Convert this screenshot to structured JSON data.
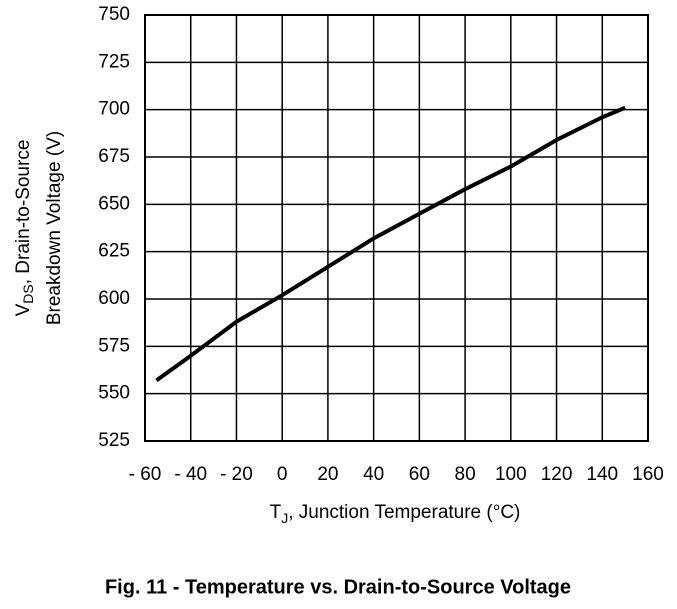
{
  "chart_data": {
    "type": "line",
    "caption": "Fig. 11 - Temperature vs. Drain-to-Source Voltage",
    "ylabel": {
      "main": "V",
      "sub": "DS",
      "rest": ", Drain-to-Source",
      "line2": "Breakdown Voltage (V)"
    },
    "xlabel": {
      "main": "T",
      "sub": "J",
      "rest": ", Junction Temperature (°C)"
    },
    "x": [
      -55,
      -40,
      -20,
      0,
      20,
      40,
      60,
      80,
      100,
      120,
      140,
      150
    ],
    "series": [
      {
        "color": "#000000",
        "values": [
          557,
          570,
          588,
          602,
          617,
          632,
          645,
          658,
          670,
          684,
          696,
          701
        ]
      }
    ],
    "xlim": [
      -60,
      160
    ],
    "ylim": [
      525,
      750
    ],
    "xticks": [
      {
        "value": -60,
        "label": "- 60"
      },
      {
        "value": -40,
        "label": "- 40"
      },
      {
        "value": -20,
        "label": "- 20"
      },
      0,
      20,
      40,
      60,
      80,
      100,
      120,
      140,
      160
    ],
    "yticks": [
      525,
      550,
      575,
      600,
      625,
      650,
      675,
      700,
      725,
      750
    ],
    "grid": true
  }
}
